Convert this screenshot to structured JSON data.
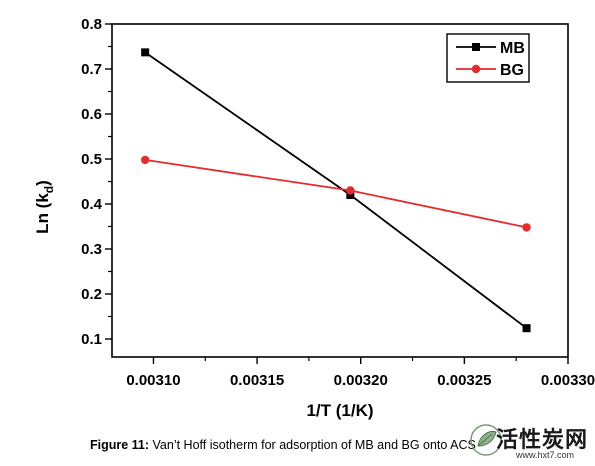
{
  "chart_data": {
    "type": "line",
    "xlabel": "1/T (1/K)",
    "ylabel_main": "Ln (k",
    "ylabel_sub": "d",
    "ylabel_close": ")",
    "xlim": [
      0.00308,
      0.0033
    ],
    "ylim": [
      0.06,
      0.8
    ],
    "xticks": [
      0.0031,
      0.00315,
      0.0032,
      0.00325,
      0.0033
    ],
    "xtick_labels": [
      "0.00310",
      "0.00315",
      "0.00320",
      "0.00325",
      "0.00330"
    ],
    "yticks": [
      0.1,
      0.2,
      0.3,
      0.4,
      0.5,
      0.6,
      0.7,
      0.8
    ],
    "ytick_labels": [
      "0.1",
      "0.2",
      "0.3",
      "0.4",
      "0.5",
      "0.6",
      "0.7",
      "0.8"
    ],
    "legend_position": "top-right",
    "series": [
      {
        "name": "MB",
        "color": "#000000",
        "marker": "square",
        "x": [
          0.003096,
          0.003195,
          0.00328
        ],
        "y": [
          0.737,
          0.42,
          0.124
        ]
      },
      {
        "name": "BG",
        "color": "#e52b2b",
        "marker": "circle",
        "x": [
          0.003096,
          0.003195,
          0.00328
        ],
        "y": [
          0.498,
          0.43,
          0.348
        ]
      }
    ]
  },
  "caption": {
    "label": "Figure 11:",
    "text": " Van’t Hoff isotherm for adsorption of MB and BG onto ACS"
  },
  "watermark": {
    "text": "活性炭网",
    "url": "www.hxt7.com",
    "icon": "leaf-logo-icon"
  }
}
